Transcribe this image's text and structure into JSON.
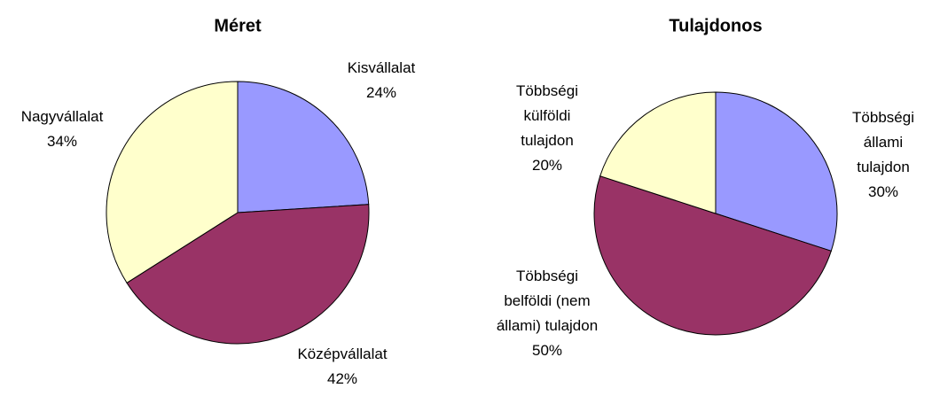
{
  "chart_data": [
    {
      "type": "pie",
      "title": "Méret",
      "categories": [
        "Kisvállalat",
        "Középvállalat",
        "Nagyvállalat"
      ],
      "values": [
        24,
        42,
        34
      ],
      "value_labels": [
        "24%",
        "42%",
        "34%"
      ],
      "colors": [
        "#9999ff",
        "#993366",
        "#ffffcc"
      ]
    },
    {
      "type": "pie",
      "title": "Tulajdonos",
      "categories": [
        "Többségi állami tulajdon",
        "Többségi belföldi (nem állami) tulajdon",
        "Többségi külföldi tulajdon"
      ],
      "values": [
        30,
        50,
        20
      ],
      "value_labels": [
        "30%",
        "50%",
        "20%"
      ],
      "colors": [
        "#9999ff",
        "#993366",
        "#ffffcc"
      ]
    }
  ]
}
